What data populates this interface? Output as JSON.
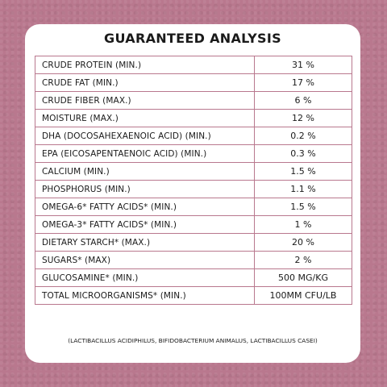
{
  "title": "GUARANTEED ANALYSIS",
  "rows": [
    {
      "name": "CRUDE PROTEIN (MIN.)",
      "value": "31 %"
    },
    {
      "name": "CRUDE FAT (MIN.)",
      "value": "17 %"
    },
    {
      "name": "CRUDE FIBER (MAX.)",
      "value": "6 %"
    },
    {
      "name": "MOISTURE (MAX.)",
      "value": "12 %"
    },
    {
      "name": "DHA (DOCOSAHEXAENOIC ACID) (MIN.)",
      "value": "0.2 %"
    },
    {
      "name": "EPA (EICOSAPENTAENOIC ACID) (MIN.)",
      "value": "0.3 %"
    },
    {
      "name": "CALCIUM (MIN.)",
      "value": "1.5 %"
    },
    {
      "name": "PHOSPHORUS (MIN.)",
      "value": "1.1 %"
    },
    {
      "name": "OMEGA-6* FATTY ACIDS* (MIN.)",
      "value": "1.5 %"
    },
    {
      "name": "OMEGA-3* FATTY ACIDS* (MIN.)",
      "value": "1 %"
    },
    {
      "name": "DIETARY STARCH* (MAX.)",
      "value": "20 %"
    },
    {
      "name": "SUGARS* (MAX)",
      "value": "2 %"
    },
    {
      "name": "GLUCOSAMINE* (MIN.)",
      "value": "500 MG/KG"
    },
    {
      "name": "TOTAL MICROORGANISMS* (MIN.)",
      "value": "100MM CFU/LB"
    }
  ],
  "footnote": "(LACTIBACILLUS ACIDIPHILUS, BIFIDOBACTERIUM ANIMALUS, LACTIBACILLUS CASEI)",
  "colors": {
    "background": "#b9788e",
    "card": "#ffffff",
    "border": "#b9788e",
    "text": "#1a1a1a"
  }
}
